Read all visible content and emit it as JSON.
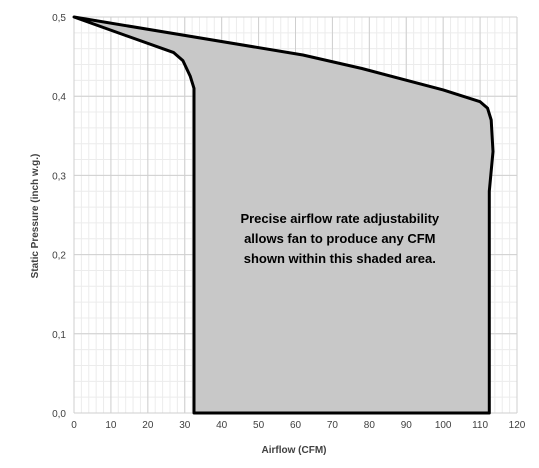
{
  "chart_data": {
    "type": "area",
    "title": "",
    "xlabel": "Airflow (CFM)",
    "ylabel": "Static Pressure (inch w.g.)",
    "xlim": [
      0,
      120
    ],
    "ylim": [
      0,
      0.5
    ],
    "x_ticks": [
      0,
      10,
      20,
      30,
      40,
      50,
      60,
      70,
      80,
      90,
      100,
      110,
      120
    ],
    "y_ticks": [
      0,
      0.1,
      0.2,
      0.3,
      0.4,
      0.5
    ],
    "x_tick_labels": [
      "0",
      "10",
      "20",
      "30",
      "40",
      "50",
      "60",
      "70",
      "80",
      "90",
      "100",
      "110",
      "120"
    ],
    "y_tick_labels": [
      "0,0",
      "0,1",
      "0,2",
      "0,3",
      "0,4",
      "0,5"
    ],
    "grid": true,
    "region_fill_color": "#c8c8c8",
    "boundary_color": "#000000",
    "boundary": [
      {
        "x": 0,
        "y": 0.5
      },
      {
        "x": 27,
        "y": 0.455
      },
      {
        "x": 29.5,
        "y": 0.445
      },
      {
        "x": 31.5,
        "y": 0.425
      },
      {
        "x": 32.5,
        "y": 0.41
      },
      {
        "x": 32.5,
        "y": 0.0
      },
      {
        "x": 112.5,
        "y": 0.0
      },
      {
        "x": 112.5,
        "y": 0.28
      },
      {
        "x": 113.5,
        "y": 0.33
      },
      {
        "x": 113,
        "y": 0.37
      },
      {
        "x": 112,
        "y": 0.385
      },
      {
        "x": 110,
        "y": 0.393
      },
      {
        "x": 100,
        "y": 0.408
      },
      {
        "x": 78,
        "y": 0.435
      },
      {
        "x": 62,
        "y": 0.452
      },
      {
        "x": 0,
        "y": 0.5
      }
    ],
    "annotation": {
      "lines": [
        "Precise airflow rate adjustability",
        "allows fan to produce any CFM",
        "shown within this shaded area."
      ],
      "x": 72,
      "y": 0.22
    }
  }
}
